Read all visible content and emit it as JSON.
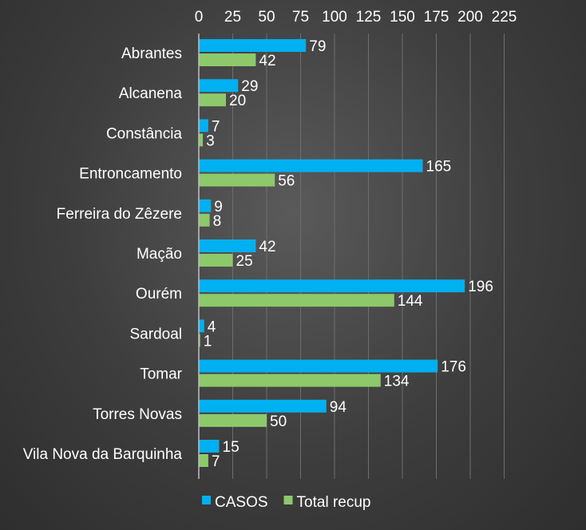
{
  "chart_data": {
    "type": "bar",
    "orientation": "horizontal",
    "categories": [
      "Abrantes",
      "Alcanena",
      "Constância",
      "Entroncamento",
      "Ferreira do Zêzere",
      "Mação",
      "Ourém",
      "Sardoal",
      "Tomar",
      "Torres Novas",
      "Vila Nova da Barquinha"
    ],
    "series": [
      {
        "name": "CASOS",
        "color": "#00b0f0",
        "values": [
          79,
          29,
          7,
          165,
          9,
          42,
          196,
          4,
          176,
          94,
          15
        ]
      },
      {
        "name": "Total recup",
        "color": "#8dc96b",
        "values": [
          42,
          20,
          3,
          56,
          8,
          25,
          144,
          1,
          134,
          50,
          7
        ]
      }
    ],
    "x_ticks": [
      0,
      25,
      50,
      75,
      100,
      125,
      150,
      175,
      200,
      225
    ],
    "xlim": [
      0,
      225
    ],
    "axis_position": "top",
    "grid": true,
    "legend": "bottom",
    "data_labels": true
  }
}
